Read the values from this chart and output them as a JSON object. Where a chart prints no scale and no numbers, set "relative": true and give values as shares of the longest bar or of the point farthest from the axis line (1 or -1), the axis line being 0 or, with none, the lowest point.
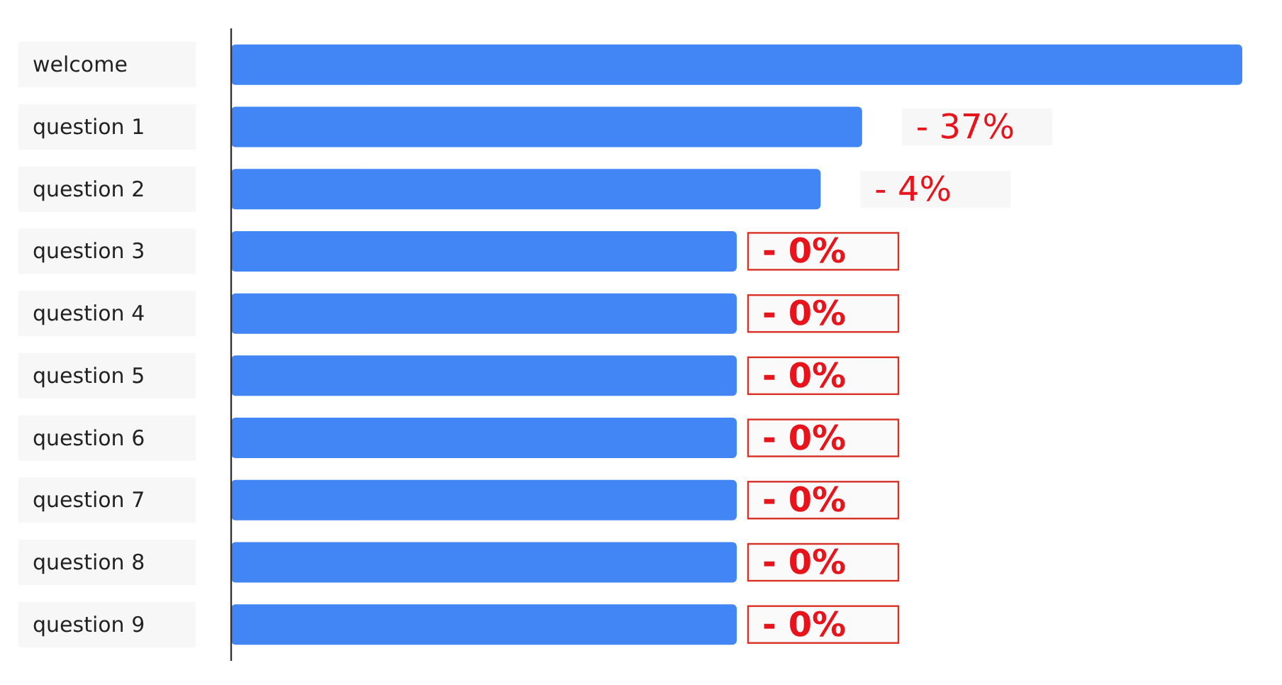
{
  "chart_data": {
    "type": "bar",
    "orientation": "horizontal",
    "relative": true,
    "categories": [
      "welcome",
      "question 1",
      "question 2",
      "question 3",
      "question 4",
      "question 5",
      "question 6",
      "question 7",
      "question 8",
      "question 9"
    ],
    "values": [
      1,
      0.624,
      0.583,
      0.5,
      0.5,
      0.5,
      0.5,
      0.5,
      0.5,
      0.5
    ],
    "annotations": [
      {
        "text": "- 37%",
        "x": 0.624,
        "y": "question 1"
      },
      {
        "text": "- 4%",
        "x": 0.583,
        "y": "question 2"
      },
      {
        "text": "- 0%",
        "x": 0.5,
        "y": "question 3"
      },
      {
        "text": "- 0%",
        "x": 0.5,
        "y": "question 4"
      },
      {
        "text": "- 0%",
        "x": 0.5,
        "y": "question 5"
      },
      {
        "text": "- 0%",
        "x": 0.5,
        "y": "question 6"
      },
      {
        "text": "- 0%",
        "x": 0.5,
        "y": "question 7"
      },
      {
        "text": "- 0%",
        "x": 0.5,
        "y": "question 8"
      },
      {
        "text": "- 0%",
        "x": 0.5,
        "y": "question 9"
      }
    ],
    "color": "#4285f4"
  }
}
